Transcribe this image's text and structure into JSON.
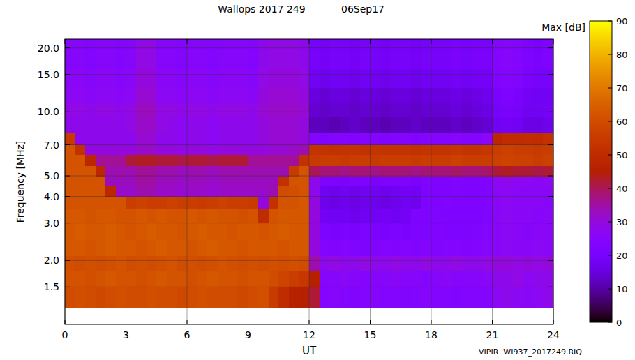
{
  "chart_data": {
    "type": "heatmap",
    "title": "Wallops 2017 249",
    "subtitle": "06Sep17",
    "x_label": "UT",
    "y_label": "Frequency [MHz]",
    "annotations": [
      "VIPIR  WI937_2017249.RIQ"
    ],
    "log": "y",
    "grid": true,
    "xlim": [
      0,
      24
    ],
    "xticks": [
      0,
      3,
      6,
      9,
      12,
      15,
      18,
      21,
      24
    ],
    "ylim": [
      1.0,
      22
    ],
    "yticks": [
      1.5,
      {
        "value": 2,
        "label": "2.0"
      },
      {
        "value": 3,
        "label": "3.0"
      },
      {
        "value": 4,
        "label": "4.0"
      },
      {
        "value": 5,
        "label": "5.0"
      },
      {
        "value": 7,
        "label": "7.0"
      },
      {
        "value": 10,
        "label": "10.0"
      },
      {
        "value": 15,
        "label": "15.0"
      },
      {
        "value": 20,
        "label": "20.0"
      }
    ],
    "x_edges": [
      0,
      0.5,
      1,
      1.5,
      2,
      2.5,
      3,
      3.5,
      4,
      4.5,
      5,
      5.5,
      6,
      6.5,
      7,
      7.5,
      8,
      8.5,
      9,
      9.5,
      10,
      10.5,
      11,
      11.5,
      12,
      12.5,
      13,
      13.5,
      14,
      14.5,
      15,
      15.5,
      16,
      16.5,
      17,
      17.5,
      18,
      18.5,
      19,
      19.5,
      20,
      20.5,
      21,
      21.5,
      22,
      22.5,
      23,
      23.5,
      24
    ],
    "y_edges": [
      1.2,
      1.5,
      1.8,
      2.1,
      2.5,
      3.0,
      3.5,
      4.0,
      4.5,
      5.0,
      5.6,
      6.3,
      7.0,
      8.0,
      9.5,
      11,
      13,
      16,
      22
    ],
    "z": [
      [
        60,
        61,
        60,
        59,
        60,
        61,
        60,
        60,
        61,
        60,
        60,
        59,
        60,
        61,
        60,
        60,
        60,
        59,
        60,
        61,
        55,
        50,
        46,
        45,
        42,
        24,
        25,
        24,
        23,
        24,
        25,
        24,
        24,
        23,
        24,
        25,
        24,
        24,
        23,
        24,
        24,
        24,
        27,
        28,
        27,
        26,
        27,
        28
      ],
      [
        62,
        62,
        61,
        62,
        63,
        62,
        62,
        61,
        62,
        63,
        62,
        62,
        61,
        62,
        63,
        62,
        62,
        61,
        62,
        62,
        60,
        58,
        56,
        54,
        45,
        25,
        25,
        26,
        25,
        24,
        25,
        25,
        26,
        25,
        25,
        24,
        25,
        26,
        25,
        25,
        25,
        26,
        28,
        28,
        29,
        27,
        28,
        28
      ],
      [
        61,
        60,
        61,
        60,
        61,
        62,
        60,
        61,
        60,
        61,
        62,
        60,
        61,
        60,
        61,
        62,
        61,
        60,
        61,
        60,
        61,
        60,
        61,
        60,
        34,
        28,
        29,
        28,
        28,
        29,
        28,
        28,
        29,
        28,
        28,
        29,
        28,
        28,
        29,
        28,
        28,
        29,
        30,
        30,
        29,
        30,
        29,
        30
      ],
      [
        63,
        63,
        62,
        63,
        64,
        63,
        63,
        62,
        63,
        64,
        63,
        63,
        62,
        63,
        64,
        63,
        63,
        62,
        63,
        63,
        63,
        62,
        63,
        63,
        30,
        24,
        23,
        24,
        23,
        22,
        23,
        24,
        23,
        24,
        23,
        24,
        23,
        24,
        24,
        23,
        24,
        25,
        26,
        27,
        26,
        26,
        27,
        26
      ],
      [
        63,
        64,
        63,
        63,
        64,
        63,
        62,
        63,
        64,
        63,
        63,
        62,
        63,
        64,
        63,
        63,
        62,
        63,
        63,
        62,
        63,
        64,
        63,
        63,
        30,
        22,
        21,
        22,
        21,
        22,
        22,
        21,
        22,
        21,
        22,
        22,
        23,
        22,
        22,
        22,
        23,
        24,
        26,
        27,
        26,
        25,
        26,
        26
      ],
      [
        63,
        63,
        62,
        63,
        63,
        62,
        62,
        63,
        62,
        63,
        62,
        62,
        63,
        62,
        63,
        62,
        62,
        61,
        62,
        50,
        62,
        63,
        63,
        63,
        30,
        19,
        18,
        18,
        17,
        18,
        18,
        19,
        18,
        19,
        22,
        22,
        23,
        22,
        22,
        22,
        22,
        23,
        26,
        27,
        26,
        26,
        25,
        26
      ],
      [
        62,
        62,
        62,
        62,
        62,
        62,
        56,
        57,
        56,
        56,
        57,
        56,
        56,
        55,
        56,
        57,
        56,
        56,
        55,
        30,
        52,
        62,
        62,
        63,
        30,
        17,
        16,
        17,
        16,
        17,
        17,
        16,
        17,
        18,
        17,
        22,
        22,
        23,
        22,
        22,
        22,
        23,
        26,
        27,
        26,
        26,
        26,
        25
      ],
      [
        62,
        62,
        62,
        62,
        48,
        32,
        32,
        34,
        34,
        32,
        32,
        31,
        32,
        32,
        31,
        32,
        32,
        32,
        32,
        32,
        34,
        60,
        61,
        62,
        28,
        18,
        17,
        18,
        17,
        18,
        18,
        17,
        18,
        19,
        18,
        22,
        22,
        22,
        23,
        22,
        22,
        23,
        26,
        27,
        26,
        26,
        26,
        26
      ],
      [
        62,
        62,
        62,
        62,
        33,
        33,
        33,
        35,
        35,
        33,
        33,
        32,
        33,
        33,
        32,
        33,
        33,
        33,
        33,
        33,
        33,
        52,
        62,
        62,
        28,
        22,
        22,
        21,
        22,
        22,
        21,
        22,
        22,
        22,
        21,
        22,
        22,
        22,
        23,
        22,
        22,
        23,
        27,
        28,
        27,
        27,
        26,
        27
      ],
      [
        62,
        62,
        62,
        48,
        34,
        34,
        34,
        36,
        36,
        34,
        34,
        33,
        34,
        34,
        33,
        34,
        34,
        34,
        34,
        34,
        34,
        34,
        55,
        62,
        40,
        38,
        38,
        37,
        38,
        38,
        37,
        38,
        38,
        38,
        37,
        38,
        38,
        38,
        39,
        38,
        38,
        39,
        42,
        43,
        42,
        42,
        41,
        42
      ],
      [
        62,
        62,
        48,
        36,
        36,
        36,
        42,
        43,
        43,
        42,
        42,
        41,
        42,
        42,
        41,
        42,
        42,
        42,
        36,
        36,
        36,
        36,
        36,
        52,
        55,
        56,
        56,
        55,
        56,
        56,
        55,
        56,
        56,
        56,
        55,
        56,
        56,
        56,
        57,
        56,
        56,
        56,
        57,
        58,
        57,
        57,
        56,
        57
      ],
      [
        62,
        52,
        30,
        30,
        30,
        30,
        30,
        32,
        32,
        30,
        30,
        29,
        30,
        30,
        29,
        30,
        30,
        30,
        30,
        30,
        31,
        31,
        32,
        34,
        53,
        53,
        52,
        53,
        53,
        52,
        53,
        53,
        53,
        53,
        52,
        53,
        53,
        53,
        54,
        53,
        53,
        54,
        56,
        57,
        56,
        56,
        55,
        56
      ],
      [
        55,
        28,
        28,
        28,
        28,
        28,
        28,
        31,
        31,
        28,
        28,
        27,
        28,
        28,
        27,
        28,
        28,
        28,
        28,
        30,
        31,
        31,
        31,
        30,
        24,
        23,
        24,
        24,
        23,
        24,
        24,
        23,
        24,
        24,
        23,
        24,
        24,
        24,
        25,
        24,
        24,
        26,
        48,
        50,
        50,
        51,
        50,
        52
      ],
      [
        28,
        28,
        28,
        28,
        28,
        28,
        29,
        32,
        32,
        29,
        28,
        27,
        28,
        28,
        27,
        28,
        28,
        28,
        28,
        30,
        31,
        31,
        31,
        30,
        12,
        12,
        11,
        12,
        13,
        12,
        12,
        11,
        12,
        12,
        13,
        12,
        12,
        12,
        13,
        12,
        13,
        14,
        18,
        19,
        18,
        16,
        16,
        17
      ],
      [
        29,
        29,
        28,
        29,
        29,
        28,
        29,
        33,
        33,
        29,
        29,
        28,
        29,
        29,
        28,
        29,
        29,
        29,
        28,
        31,
        32,
        32,
        32,
        31,
        14,
        13,
        14,
        14,
        13,
        14,
        14,
        13,
        14,
        14,
        13,
        14,
        14,
        14,
        15,
        14,
        15,
        16,
        20,
        21,
        20,
        18,
        18,
        19
      ],
      [
        27,
        27,
        26,
        27,
        27,
        26,
        27,
        31,
        31,
        27,
        27,
        26,
        27,
        27,
        26,
        27,
        27,
        27,
        26,
        30,
        31,
        31,
        31,
        30,
        15,
        14,
        15,
        15,
        14,
        15,
        15,
        14,
        15,
        15,
        14,
        15,
        15,
        15,
        16,
        15,
        16,
        17,
        21,
        22,
        21,
        19,
        18,
        18
      ],
      [
        26,
        26,
        25,
        26,
        26,
        25,
        26,
        30,
        30,
        26,
        26,
        25,
        26,
        26,
        25,
        26,
        26,
        26,
        25,
        29,
        30,
        30,
        30,
        29,
        18,
        17,
        18,
        18,
        17,
        18,
        18,
        17,
        18,
        18,
        17,
        18,
        18,
        18,
        19,
        18,
        19,
        19,
        23,
        24,
        23,
        21,
        20,
        20
      ],
      [
        25,
        25,
        24,
        25,
        25,
        24,
        25,
        29,
        29,
        25,
        25,
        24,
        25,
        25,
        24,
        25,
        25,
        25,
        24,
        28,
        29,
        29,
        29,
        28,
        20,
        19,
        20,
        20,
        19,
        20,
        20,
        19,
        20,
        20,
        19,
        20,
        20,
        20,
        21,
        20,
        21,
        21,
        24,
        25,
        24,
        22,
        21,
        22
      ]
    ],
    "colorbar": {
      "label": "Max [dB]",
      "range": [
        0,
        90
      ],
      "ticks": [
        0,
        10,
        20,
        30,
        40,
        50,
        60,
        70,
        80,
        90
      ]
    }
  }
}
